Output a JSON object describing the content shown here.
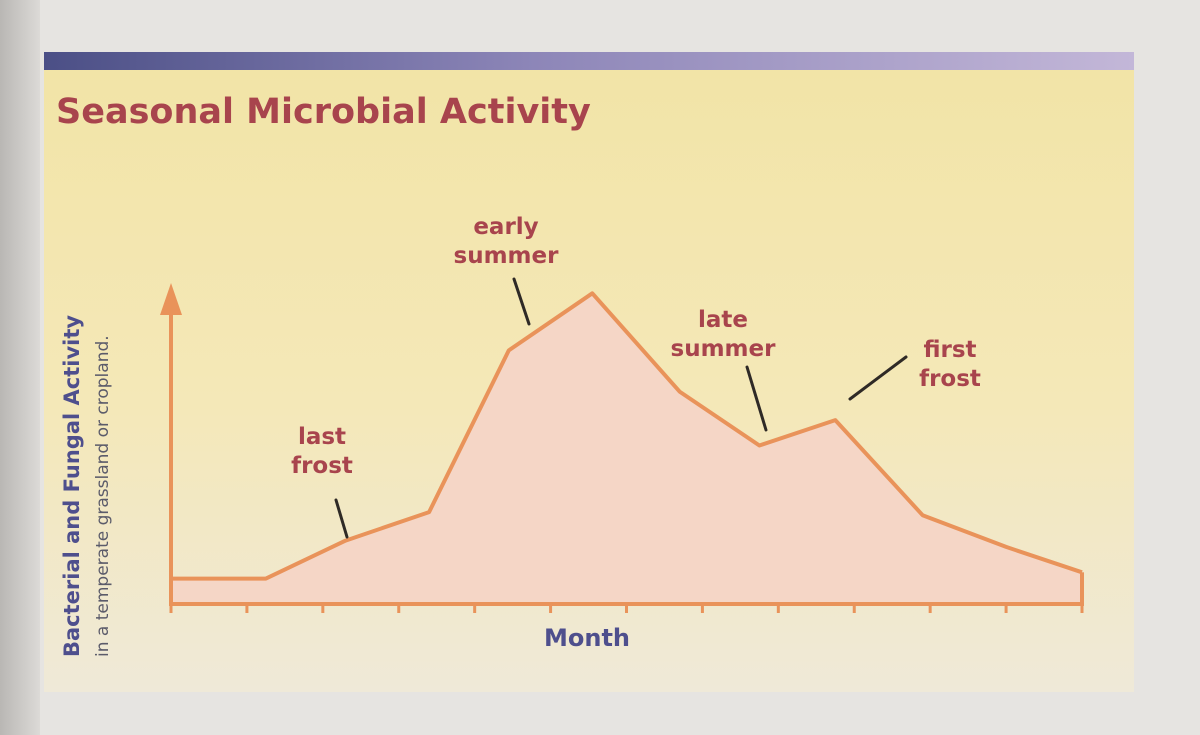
{
  "chart_data": {
    "type": "area",
    "title": "Seasonal Microbial Activity",
    "xlabel": "Month",
    "ylabel": "Bacterial and Fungal Activity",
    "ylabel_sub": "in a temperate grassland or cropland.",
    "x_ticks": [
      0,
      1,
      2,
      3,
      4,
      5,
      6,
      7,
      8,
      9,
      10,
      11,
      12
    ],
    "xlim": [
      0,
      12
    ],
    "ylim": [
      0,
      100
    ],
    "series": [
      {
        "name": "activity",
        "x": [
          0,
          1.25,
          2.3,
          3.4,
          4.45,
          5.55,
          6.7,
          7.75,
          8.75,
          9.9,
          11,
          12
        ],
        "y": [
          8,
          8,
          20,
          29,
          80,
          98,
          67,
          50,
          58,
          28,
          18,
          10
        ]
      }
    ],
    "annotations": [
      {
        "label": "last frost",
        "lines": [
          "last",
          "frost"
        ],
        "x": 2.35,
        "y": 20
      },
      {
        "label": "early summer",
        "lines": [
          "early",
          "summer"
        ],
        "x": 4.6,
        "y": 84
      },
      {
        "label": "late summer",
        "lines": [
          "late",
          "summer"
        ],
        "x": 7.7,
        "y": 51
      },
      {
        "label": "first frost",
        "lines": [
          "first",
          "frost"
        ],
        "x": 8.9,
        "y": 57
      }
    ],
    "colors": {
      "line": "#e9935a",
      "fill": "#f5d6c6",
      "axis": "#e9935a",
      "annotation_text": "#a8444d",
      "title": "#a8444d",
      "ylabel": "#4e4f8d",
      "ylabel_sub": "#5b5b6a",
      "xlabel": "#4e4f8d"
    }
  }
}
